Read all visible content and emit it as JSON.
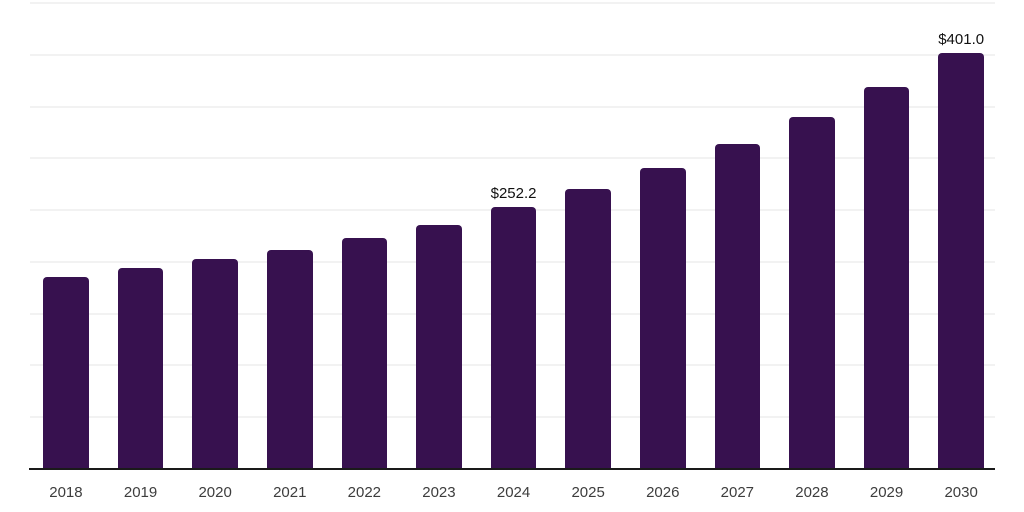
{
  "chart_data": {
    "type": "bar",
    "title": "",
    "categories": [
      "2018",
      "2019",
      "2020",
      "2021",
      "2022",
      "2023",
      "2024",
      "2025",
      "2026",
      "2027",
      "2028",
      "2029",
      "2030"
    ],
    "values": [
      184.0,
      192.7,
      201.4,
      211.0,
      222.6,
      235.1,
      252.2,
      269.8,
      290.0,
      313.2,
      339.2,
      368.1,
      401.0
    ],
    "value_prefix": "$",
    "data_labels": [
      {
        "category": "2024",
        "text": "$252.2"
      },
      {
        "category": "2030",
        "text": "$401.0"
      }
    ],
    "xlabel": "",
    "ylabel": "",
    "ylim": [
      0,
      450
    ],
    "gridline_step": 50,
    "grid": true,
    "legend": "none",
    "y_tick_labels_visible": false,
    "colors": {
      "bar": "#37114f",
      "axis": "#1a1a1a",
      "gridline": "#f2f2f2",
      "tick_label": "#3d3d3d",
      "data_label": "#111111",
      "background": "#ffffff"
    }
  }
}
